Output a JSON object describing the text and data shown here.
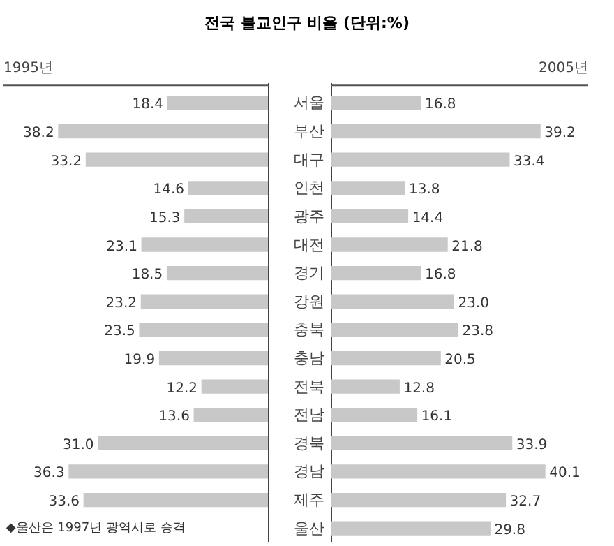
{
  "chart_data": [
    {
      "type": "other",
      "title": "전국 불교인구 비율 (단위:%)"
    },
    {
      "type": "bar",
      "orientation": "horizontal",
      "title": "1995년",
      "categories": [
        "서울",
        "부산",
        "대구",
        "인천",
        "광주",
        "대전",
        "경기",
        "강원",
        "충북",
        "충남",
        "전북",
        "전남",
        "경북",
        "경남",
        "제주",
        "울산"
      ],
      "values": [
        18.4,
        38.2,
        33.2,
        14.6,
        15.3,
        23.1,
        18.5,
        23.2,
        23.5,
        19.9,
        12.2,
        13.6,
        31.0,
        36.3,
        33.6,
        null
      ],
      "value_labels": [
        "18.4",
        "38.2",
        "33.2",
        "14.6",
        "15.3",
        "23.1",
        "18.5",
        "23.2",
        "23.5",
        "19.9",
        "12.2",
        "13.6",
        "31.0",
        "36.3",
        "33.6",
        null
      ],
      "color": "#c8c8c8",
      "tick_labels": "y",
      "grid": false,
      "annotations": [
        "◆울산은 1997년 광역시로 승격"
      ]
    },
    {
      "type": "bar",
      "orientation": "horizontal",
      "title": "2005년",
      "categories": [
        null,
        null,
        null,
        null,
        null,
        null,
        null,
        null,
        null,
        null,
        null,
        null,
        null,
        null,
        null,
        null
      ],
      "values": [
        16.8,
        39.2,
        33.4,
        13.8,
        14.4,
        21.8,
        16.8,
        23.0,
        23.8,
        20.5,
        12.8,
        16.1,
        33.9,
        40.1,
        32.7,
        29.8
      ],
      "value_labels": [
        "16.8",
        "39.2",
        "33.4",
        "13.8",
        "14.4",
        "21.8",
        "16.8",
        "23.0",
        "23.8",
        "20.5",
        "12.8",
        "16.1",
        "33.9",
        "40.1",
        "32.7",
        "29.8"
      ],
      "color": "#c8c8c8",
      "tick_labels": false,
      "grid": false
    }
  ]
}
